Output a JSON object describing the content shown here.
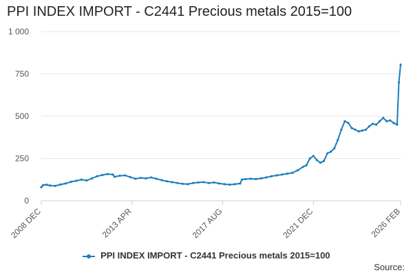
{
  "chart_data": {
    "type": "line",
    "title": "PPI INDEX IMPORT - C2441 Precious metals 2015=100",
    "xlabel": "",
    "ylabel": "",
    "xlim": [
      "2008-12",
      "2026-02"
    ],
    "ylim": [
      0,
      1000
    ],
    "yticks": [
      0,
      250,
      500,
      750,
      1000
    ],
    "ytick_labels": [
      "0",
      "250",
      "500",
      "750",
      "1 000"
    ],
    "xticks": [
      "2008-12",
      "2013-04",
      "2017-08",
      "2021-12",
      "2026-02"
    ],
    "xtick_labels": [
      "2008 DEC",
      "2013 APR",
      "2017 AUG",
      "2021 DEC",
      "2026 FEB"
    ],
    "grid": "horizontal",
    "legend_position": "bottom",
    "series": [
      {
        "name": "PPI INDEX IMPORT - C2441 Precious metals 2015=100",
        "color": "#1a7dbd",
        "points": [
          [
            "2008-12",
            80
          ],
          [
            "2009-01",
            92
          ],
          [
            "2009-03",
            95
          ],
          [
            "2009-05",
            90
          ],
          [
            "2009-08",
            88
          ],
          [
            "2009-11",
            96
          ],
          [
            "2010-02",
            102
          ],
          [
            "2010-05",
            112
          ],
          [
            "2010-08",
            118
          ],
          [
            "2010-11",
            125
          ],
          [
            "2011-02",
            120
          ],
          [
            "2011-05",
            132
          ],
          [
            "2011-08",
            145
          ],
          [
            "2011-11",
            152
          ],
          [
            "2012-02",
            158
          ],
          [
            "2012-05",
            155
          ],
          [
            "2012-06",
            142
          ],
          [
            "2012-09",
            148
          ],
          [
            "2012-12",
            150
          ],
          [
            "2013-03",
            140
          ],
          [
            "2013-06",
            130
          ],
          [
            "2013-09",
            135
          ],
          [
            "2013-12",
            132
          ],
          [
            "2014-03",
            138
          ],
          [
            "2014-06",
            130
          ],
          [
            "2014-09",
            122
          ],
          [
            "2014-12",
            115
          ],
          [
            "2015-03",
            110
          ],
          [
            "2015-06",
            105
          ],
          [
            "2015-09",
            100
          ],
          [
            "2015-12",
            98
          ],
          [
            "2016-03",
            105
          ],
          [
            "2016-06",
            108
          ],
          [
            "2016-09",
            110
          ],
          [
            "2016-12",
            105
          ],
          [
            "2017-03",
            108
          ],
          [
            "2017-06",
            102
          ],
          [
            "2017-09",
            98
          ],
          [
            "2017-12",
            95
          ],
          [
            "2018-03",
            98
          ],
          [
            "2018-06",
            102
          ],
          [
            "2018-07",
            125
          ],
          [
            "2018-09",
            128
          ],
          [
            "2018-12",
            130
          ],
          [
            "2019-03",
            128
          ],
          [
            "2019-06",
            132
          ],
          [
            "2019-09",
            138
          ],
          [
            "2019-12",
            145
          ],
          [
            "2020-03",
            150
          ],
          [
            "2020-06",
            155
          ],
          [
            "2020-09",
            160
          ],
          [
            "2020-12",
            165
          ],
          [
            "2021-03",
            180
          ],
          [
            "2021-06",
            200
          ],
          [
            "2021-08",
            210
          ],
          [
            "2021-10",
            250
          ],
          [
            "2021-12",
            265
          ],
          [
            "2022-02",
            240
          ],
          [
            "2022-04",
            225
          ],
          [
            "2022-06",
            235
          ],
          [
            "2022-08",
            280
          ],
          [
            "2022-10",
            290
          ],
          [
            "2022-12",
            310
          ],
          [
            "2023-02",
            360
          ],
          [
            "2023-04",
            420
          ],
          [
            "2023-06",
            470
          ],
          [
            "2023-08",
            460
          ],
          [
            "2023-10",
            430
          ],
          [
            "2023-12",
            420
          ],
          [
            "2024-02",
            410
          ],
          [
            "2024-04",
            415
          ],
          [
            "2024-06",
            420
          ],
          [
            "2024-08",
            440
          ],
          [
            "2024-10",
            455
          ],
          [
            "2024-12",
            450
          ],
          [
            "2025-02",
            470
          ],
          [
            "2025-04",
            490
          ],
          [
            "2025-06",
            470
          ],
          [
            "2025-08",
            475
          ],
          [
            "2025-10",
            460
          ],
          [
            "2025-12",
            450
          ],
          [
            "2026-01",
            700
          ],
          [
            "2026-02",
            805
          ]
        ]
      }
    ]
  },
  "source_label": "Source:"
}
